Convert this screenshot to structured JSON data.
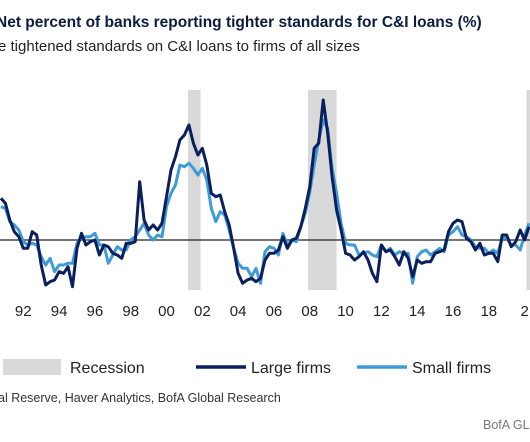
{
  "header": {
    "title": "Net percent of banks reporting tighter standards for C&I loans (%)",
    "subtitle": "e tightened standards on C&I loans to firms of all sizes"
  },
  "footer": {
    "source": "al Reserve, Haver Analytics, BofA Global Research",
    "brand": "BofA GLO"
  },
  "chart_data": {
    "type": "line",
    "title": "Net percent of banks reporting tighter standards for C&I loans (%)",
    "x_tick_labels": [
      "92",
      "94",
      "96",
      "98",
      "00",
      "02",
      "04",
      "06",
      "08",
      "10",
      "12",
      "14",
      "16",
      "18",
      "2"
    ],
    "x_ticks": [
      1992,
      1994,
      1996,
      1998,
      2000,
      2002,
      2004,
      2006,
      2008,
      2010,
      2012,
      2014,
      2016,
      2018,
      2020
    ],
    "xlim": [
      1990.7,
      2020.3
    ],
    "ylim": [
      -30,
      90
    ],
    "zero_line": true,
    "grid": false,
    "legend_position": "bottom",
    "recessions": [
      {
        "start": 2001.2,
        "end": 2001.9
      },
      {
        "start": 2007.9,
        "end": 2009.5
      },
      {
        "start": 2020.1,
        "end": 2020.4
      }
    ],
    "series": [
      {
        "name": "Large firms",
        "color": "#0b1f5c",
        "points": [
          [
            1990.75,
            25
          ],
          [
            1991.0,
            22
          ],
          [
            1991.25,
            12
          ],
          [
            1991.5,
            5
          ],
          [
            1991.75,
            2
          ],
          [
            1992.0,
            -5
          ],
          [
            1992.25,
            -5
          ],
          [
            1992.5,
            5
          ],
          [
            1992.75,
            3
          ],
          [
            1993.0,
            -15
          ],
          [
            1993.25,
            -27
          ],
          [
            1993.5,
            -25
          ],
          [
            1993.75,
            -24
          ],
          [
            1994.0,
            -19
          ],
          [
            1994.25,
            -20
          ],
          [
            1994.5,
            -16
          ],
          [
            1994.75,
            -28
          ],
          [
            1995.0,
            -5
          ],
          [
            1995.25,
            4
          ],
          [
            1995.5,
            -3
          ],
          [
            1995.75,
            -1
          ],
          [
            1996.0,
            0
          ],
          [
            1996.25,
            -9
          ],
          [
            1996.5,
            -3
          ],
          [
            1996.75,
            -4
          ],
          [
            1997.0,
            -8
          ],
          [
            1997.25,
            -9
          ],
          [
            1997.5,
            -11
          ],
          [
            1997.75,
            -2
          ],
          [
            1998.0,
            -2
          ],
          [
            1998.25,
            -1
          ],
          [
            1998.5,
            35
          ],
          [
            1998.75,
            12
          ],
          [
            1999.0,
            6
          ],
          [
            1999.25,
            9
          ],
          [
            1999.5,
            6
          ],
          [
            1999.75,
            10
          ],
          [
            2000.0,
            26
          ],
          [
            2000.25,
            42
          ],
          [
            2000.5,
            50
          ],
          [
            2000.75,
            60
          ],
          [
            2001.0,
            63
          ],
          [
            2001.25,
            69
          ],
          [
            2001.5,
            58
          ],
          [
            2001.75,
            51
          ],
          [
            2002.0,
            55
          ],
          [
            2002.25,
            45
          ],
          [
            2002.5,
            28
          ],
          [
            2002.75,
            26
          ],
          [
            2003.0,
            27
          ],
          [
            2003.25,
            17
          ],
          [
            2003.5,
            9
          ],
          [
            2003.75,
            -5
          ],
          [
            2004.0,
            -20
          ],
          [
            2004.25,
            -26
          ],
          [
            2004.5,
            -24
          ],
          [
            2004.75,
            -23
          ],
          [
            2005.0,
            -25
          ],
          [
            2005.25,
            -23
          ],
          [
            2005.5,
            -12
          ],
          [
            2005.75,
            -8
          ],
          [
            2006.0,
            -8
          ],
          [
            2006.25,
            -6
          ],
          [
            2006.5,
            2
          ],
          [
            2006.75,
            -5
          ],
          [
            2007.0,
            0
          ],
          [
            2007.25,
            1
          ],
          [
            2007.5,
            8
          ],
          [
            2007.75,
            19
          ],
          [
            2008.0,
            32
          ],
          [
            2008.25,
            55
          ],
          [
            2008.5,
            58
          ],
          [
            2008.75,
            84
          ],
          [
            2009.0,
            64
          ],
          [
            2009.25,
            38
          ],
          [
            2009.5,
            18
          ],
          [
            2009.75,
            6
          ],
          [
            2010.0,
            -8
          ],
          [
            2010.25,
            -9
          ],
          [
            2010.5,
            -12
          ],
          [
            2010.75,
            -10
          ],
          [
            2011.0,
            -7
          ],
          [
            2011.25,
            -12
          ],
          [
            2011.5,
            -20
          ],
          [
            2011.75,
            -25
          ],
          [
            2012.0,
            -3
          ],
          [
            2012.25,
            -7
          ],
          [
            2012.5,
            -6
          ],
          [
            2012.75,
            -10
          ],
          [
            2013.0,
            -15
          ],
          [
            2013.25,
            -7
          ],
          [
            2013.5,
            -11
          ],
          [
            2013.75,
            -22
          ],
          [
            2014.0,
            -12
          ],
          [
            2014.25,
            -14
          ],
          [
            2014.5,
            -13
          ],
          [
            2014.75,
            -13
          ],
          [
            2015.0,
            -8
          ],
          [
            2015.25,
            -7
          ],
          [
            2015.5,
            -6
          ],
          [
            2015.75,
            5
          ],
          [
            2016.0,
            10
          ],
          [
            2016.25,
            12
          ],
          [
            2016.5,
            11
          ],
          [
            2016.75,
            1
          ],
          [
            2017.0,
            -1
          ],
          [
            2017.25,
            -6
          ],
          [
            2017.5,
            -2
          ],
          [
            2017.75,
            -9
          ],
          [
            2018.0,
            -8
          ],
          [
            2018.25,
            -8
          ],
          [
            2018.5,
            -13
          ],
          [
            2018.75,
            3
          ],
          [
            2019.0,
            3
          ],
          [
            2019.25,
            -4
          ],
          [
            2019.5,
            -1
          ],
          [
            2019.75,
            6
          ],
          [
            2020.0,
            0
          ],
          [
            2020.25,
            8
          ]
        ]
      },
      {
        "name": "Small firms",
        "color": "#3e9ad8",
        "points": [
          [
            1990.75,
            20
          ],
          [
            1991.0,
            19
          ],
          [
            1991.25,
            11
          ],
          [
            1991.5,
            9
          ],
          [
            1991.75,
            6
          ],
          [
            1992.0,
            -1
          ],
          [
            1992.25,
            -3
          ],
          [
            1992.5,
            -2
          ],
          [
            1992.75,
            -3
          ],
          [
            1993.0,
            -10
          ],
          [
            1993.25,
            -15
          ],
          [
            1993.5,
            -11
          ],
          [
            1993.75,
            -19
          ],
          [
            1994.0,
            -15
          ],
          [
            1994.25,
            -15
          ],
          [
            1994.5,
            -14
          ],
          [
            1994.75,
            -14
          ],
          [
            1995.0,
            -2
          ],
          [
            1995.25,
            1
          ],
          [
            1995.5,
            2
          ],
          [
            1995.75,
            2
          ],
          [
            1996.0,
            4
          ],
          [
            1996.25,
            -3
          ],
          [
            1996.5,
            -3
          ],
          [
            1996.75,
            -14
          ],
          [
            1997.0,
            -9
          ],
          [
            1997.25,
            -4
          ],
          [
            1997.5,
            -6
          ],
          [
            1997.75,
            -6
          ],
          [
            1998.0,
            0
          ],
          [
            1998.25,
            2
          ],
          [
            1998.5,
            6
          ],
          [
            1998.75,
            10
          ],
          [
            1999.0,
            3
          ],
          [
            1999.25,
            0
          ],
          [
            1999.5,
            3
          ],
          [
            1999.75,
            2
          ],
          [
            2000.0,
            20
          ],
          [
            2000.25,
            28
          ],
          [
            2000.5,
            33
          ],
          [
            2000.75,
            45
          ],
          [
            2001.0,
            44
          ],
          [
            2001.25,
            46
          ],
          [
            2001.5,
            43
          ],
          [
            2001.75,
            39
          ],
          [
            2002.0,
            43
          ],
          [
            2002.25,
            36
          ],
          [
            2002.5,
            19
          ],
          [
            2002.75,
            11
          ],
          [
            2003.0,
            17
          ],
          [
            2003.25,
            15
          ],
          [
            2003.5,
            6
          ],
          [
            2003.75,
            -5
          ],
          [
            2004.0,
            -14
          ],
          [
            2004.25,
            -17
          ],
          [
            2004.5,
            -17
          ],
          [
            2004.75,
            -22
          ],
          [
            2005.0,
            -17
          ],
          [
            2005.25,
            -26
          ],
          [
            2005.5,
            -7
          ],
          [
            2005.75,
            -4
          ],
          [
            2006.0,
            -5
          ],
          [
            2006.25,
            -9
          ],
          [
            2006.5,
            4
          ],
          [
            2006.75,
            -3
          ],
          [
            2007.0,
            0
          ],
          [
            2007.25,
            -1
          ],
          [
            2007.5,
            8
          ],
          [
            2007.75,
            16
          ],
          [
            2008.0,
            29
          ],
          [
            2008.25,
            45
          ],
          [
            2008.5,
            60
          ],
          [
            2008.75,
            72
          ],
          [
            2009.0,
            67
          ],
          [
            2009.25,
            43
          ],
          [
            2009.5,
            28
          ],
          [
            2009.75,
            10
          ],
          [
            2010.0,
            -2
          ],
          [
            2010.25,
            -3
          ],
          [
            2010.5,
            -3
          ],
          [
            2010.75,
            -9
          ],
          [
            2011.0,
            -8
          ],
          [
            2011.25,
            -7
          ],
          [
            2011.5,
            -9
          ],
          [
            2011.75,
            -10
          ],
          [
            2012.0,
            -3
          ],
          [
            2012.25,
            -7
          ],
          [
            2012.5,
            -5
          ],
          [
            2012.75,
            -9
          ],
          [
            2013.0,
            -7
          ],
          [
            2013.25,
            -8
          ],
          [
            2013.5,
            -8
          ],
          [
            2013.75,
            -26
          ],
          [
            2014.0,
            -10
          ],
          [
            2014.25,
            -7
          ],
          [
            2014.5,
            -6
          ],
          [
            2014.75,
            -9
          ],
          [
            2015.0,
            -7
          ],
          [
            2015.25,
            -5
          ],
          [
            2015.5,
            -7
          ],
          [
            2015.75,
            3
          ],
          [
            2016.0,
            5
          ],
          [
            2016.25,
            8
          ],
          [
            2016.5,
            3
          ],
          [
            2016.75,
            2
          ],
          [
            2017.0,
            0
          ],
          [
            2017.25,
            -4
          ],
          [
            2017.5,
            -5
          ],
          [
            2017.75,
            -5
          ],
          [
            2018.0,
            -8
          ],
          [
            2018.25,
            -6
          ],
          [
            2018.5,
            -8
          ],
          [
            2018.75,
            1
          ],
          [
            2019.0,
            1
          ],
          [
            2019.25,
            -3
          ],
          [
            2019.5,
            -3
          ],
          [
            2019.75,
            -6
          ],
          [
            2020.0,
            3
          ],
          [
            2020.25,
            10
          ]
        ]
      }
    ],
    "legend": [
      {
        "label": "Recession",
        "kind": "box",
        "color": "#d9d9d9"
      },
      {
        "label": "Large firms",
        "kind": "line",
        "color": "#0b1f5c"
      },
      {
        "label": "Small firms",
        "kind": "line",
        "color": "#3e9ad8"
      }
    ]
  }
}
